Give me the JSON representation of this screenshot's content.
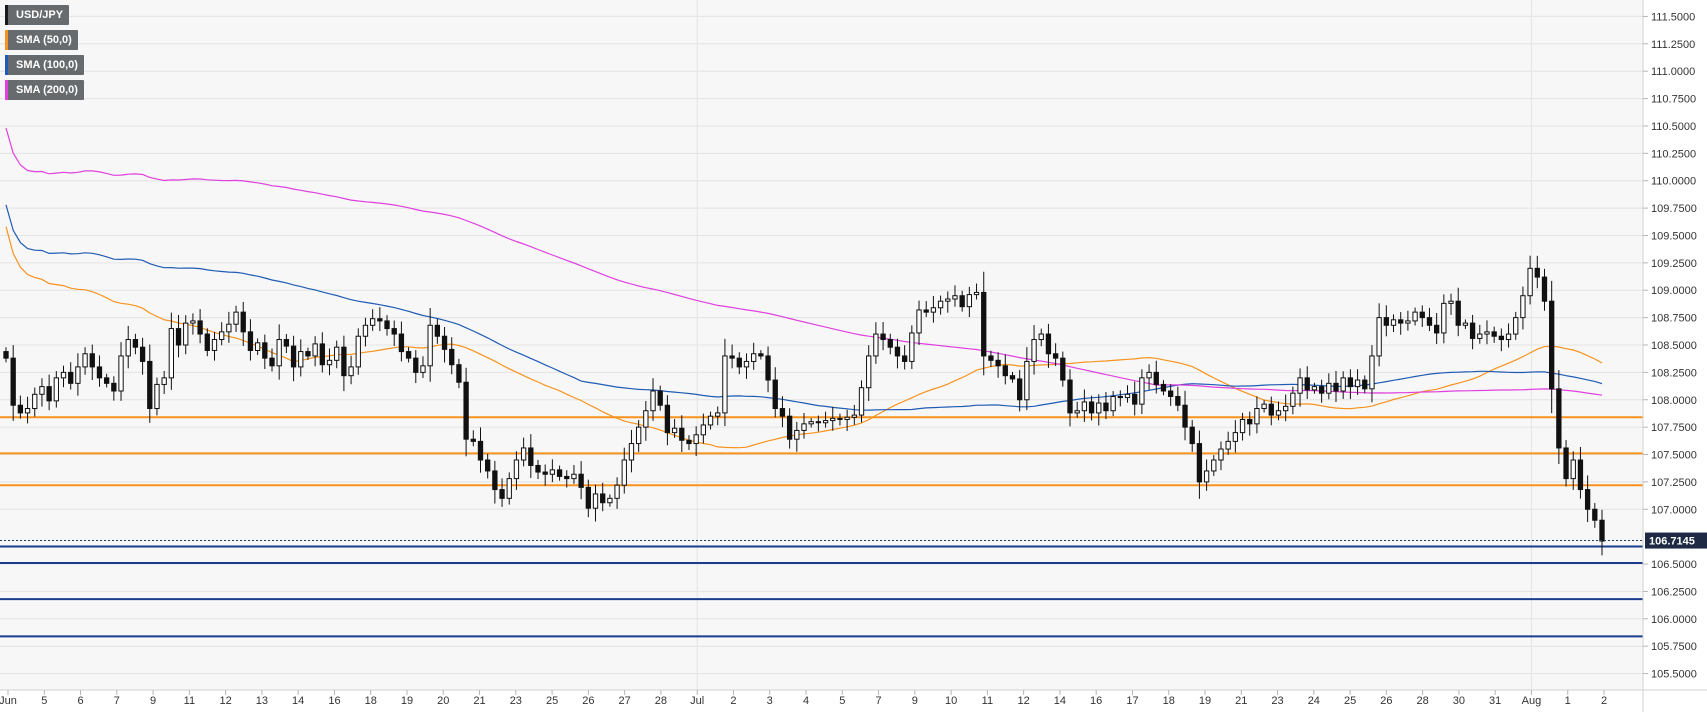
{
  "chart_data": {
    "type": "candlestick",
    "symbol": "USD/JPY",
    "legend": [
      {
        "label": "USD/JPY",
        "color": "#1a1a1a"
      },
      {
        "label": "SMA (50,0)",
        "color": "#f7931e"
      },
      {
        "label": "SMA (100,0)",
        "color": "#1f5bb5"
      },
      {
        "label": "SMA (200,0)",
        "color": "#e040e0"
      }
    ],
    "y_ticks": [
      "111.5000",
      "111.2500",
      "111.0000",
      "110.7500",
      "110.5000",
      "110.2500",
      "110.0000",
      "109.7500",
      "109.5000",
      "109.2500",
      "109.0000",
      "108.7500",
      "108.5000",
      "108.2500",
      "108.0000",
      "107.7500",
      "107.5000",
      "107.2500",
      "107.0000",
      "106.5000",
      "106.2500",
      "106.0000",
      "105.7500",
      "105.5000"
    ],
    "ylim": [
      105.35,
      111.65
    ],
    "last_price": "106.7145",
    "x_labels": [
      "Jun",
      "5",
      "6",
      "7",
      "9",
      "11",
      "12",
      "13",
      "14",
      "16",
      "18",
      "19",
      "20",
      "21",
      "23",
      "25",
      "26",
      "27",
      "28",
      "Jul",
      "2",
      "3",
      "4",
      "5",
      "7",
      "9",
      "10",
      "11",
      "12",
      "14",
      "16",
      "17",
      "18",
      "19",
      "21",
      "23",
      "24",
      "25",
      "26",
      "28",
      "30",
      "31",
      "Aug",
      "1",
      "2"
    ],
    "resistance_levels": [
      107.84,
      107.51,
      107.22
    ],
    "support_levels": [
      106.66,
      106.51,
      106.18,
      105.84
    ],
    "close": [
      108.38,
      107.95,
      107.88,
      107.92,
      108.05,
      108.12,
      107.99,
      108.2,
      108.25,
      108.15,
      108.3,
      108.42,
      108.3,
      108.2,
      108.15,
      108.08,
      108.4,
      108.55,
      108.48,
      108.35,
      107.92,
      108.14,
      108.2,
      108.65,
      108.5,
      108.7,
      108.72,
      108.6,
      108.45,
      108.55,
      108.62,
      108.69,
      108.8,
      108.62,
      108.45,
      108.52,
      108.38,
      108.31,
      108.55,
      108.49,
      108.3,
      108.44,
      108.4,
      108.51,
      108.32,
      108.36,
      108.48,
      108.22,
      108.3,
      108.58,
      108.68,
      108.74,
      108.72,
      108.65,
      108.6,
      108.44,
      108.38,
      108.25,
      108.31,
      108.68,
      108.58,
      108.46,
      108.32,
      108.16,
      107.64,
      107.62,
      107.45,
      107.35,
      107.18,
      107.1,
      107.28,
      107.45,
      107.56,
      107.4,
      107.34,
      107.32,
      107.36,
      107.3,
      107.28,
      107.32,
      107.2,
      107.01,
      107.14,
      107.06,
      107.1,
      107.22,
      107.45,
      107.6,
      107.75,
      107.9,
      108.08,
      107.95,
      107.7,
      107.74,
      107.63,
      107.6,
      107.68,
      107.77,
      107.85,
      107.88,
      108.4,
      108.38,
      108.3,
      108.35,
      108.42,
      108.4,
      108.18,
      107.92,
      107.85,
      107.64,
      107.72,
      107.78,
      107.8,
      107.79,
      107.81,
      107.83,
      107.82,
      107.84,
      107.86,
      108.11,
      108.4,
      108.6,
      108.55,
      108.48,
      108.4,
      108.35,
      108.61,
      108.82,
      108.8,
      108.84,
      108.9,
      108.92,
      108.95,
      108.85,
      108.96,
      108.98,
      108.4,
      108.36,
      108.31,
      108.22,
      108.19,
      108.0,
      108.35,
      108.55,
      108.6,
      108.42,
      108.38,
      108.18,
      107.88,
      107.9,
      107.98,
      107.88,
      107.97,
      107.9,
      108.03,
      108.02,
      108.05,
      107.96,
      108.2,
      108.25,
      108.14,
      108.08,
      108.03,
      107.95,
      107.75,
      107.6,
      107.25,
      107.35,
      107.45,
      107.55,
      107.62,
      107.7,
      107.82,
      107.78,
      107.92,
      107.96,
      107.86,
      107.9,
      107.94,
      108.06,
      108.2,
      108.09,
      108.12,
      108.06,
      108.15,
      108.08,
      108.2,
      108.12,
      108.18,
      108.1,
      108.4,
      108.75,
      108.68,
      108.73,
      108.7,
      108.72,
      108.8,
      108.75,
      108.68,
      108.61,
      108.88,
      108.9,
      108.68,
      108.7,
      108.56,
      108.6,
      108.62,
      108.58,
      108.55,
      108.6,
      108.75,
      108.95,
      109.2,
      109.12,
      108.9,
      108.1,
      107.56,
      107.28,
      107.45,
      107.18,
      107.0,
      106.9,
      106.71
    ]
  }
}
